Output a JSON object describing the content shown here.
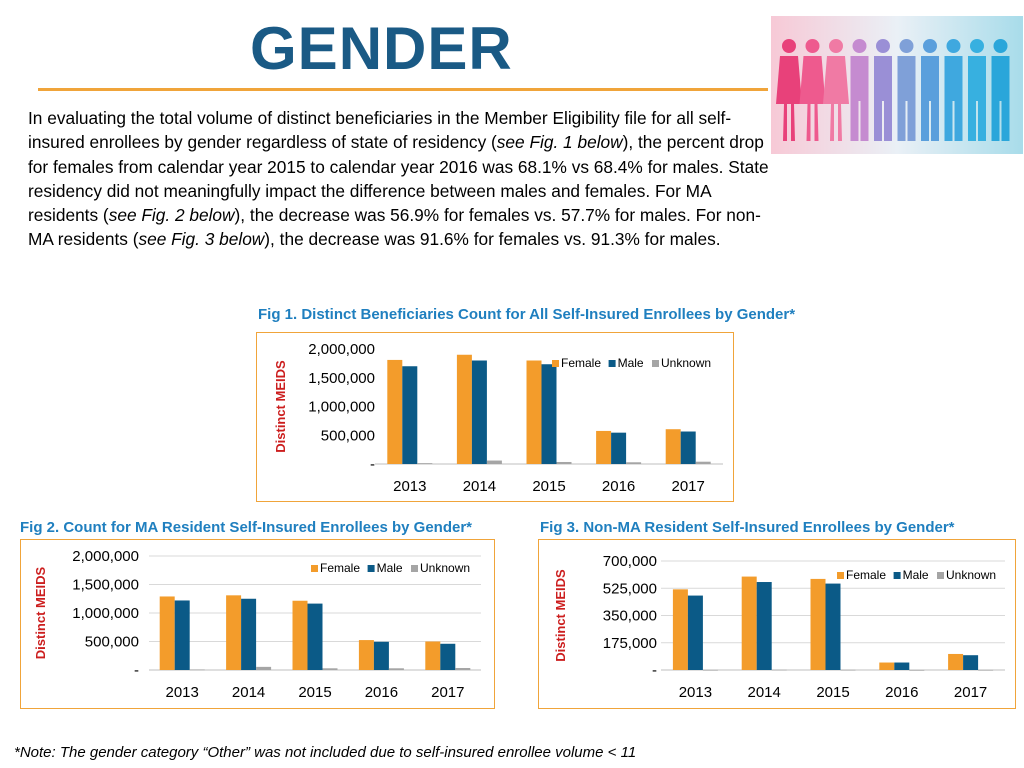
{
  "page": {
    "title": "GENDER",
    "paragraph": [
      {
        "t": "In evaluating the total volume of distinct beneficiaries in the Member Eligibility file for all self-insured enrollees by gender regardless of state of residency (",
        "i": false
      },
      {
        "t": "see Fig. 1 below",
        "i": true
      },
      {
        "t": "), the percent drop for females from calendar year 2015 to calendar year 2016 was 68.1% vs 68.4% for males.  State residency did not meaningfully impact the difference between males and females.  For MA residents (",
        "i": false
      },
      {
        "t": "see Fig. 2 below",
        "i": true
      },
      {
        "t": "),  the decrease was 56.9% for females vs. 57.7% for males.  For non-MA residents (",
        "i": false
      },
      {
        "t": "see Fig. 3 below",
        "i": true
      },
      {
        "t": "), the decrease was 91.6% for females vs. 91.3% for males.",
        "i": false
      }
    ],
    "note": "*Note: The gender category “Other” was not included due to self-insured enrollee volume < 11",
    "hero_icon": "people-silhouettes-image"
  },
  "chart_data": [
    {
      "type": "bar",
      "title": "Fig 1. Distinct Beneficiaries Count for All Self-Insured Enrollees by Gender*",
      "ylabel": "Distinct MEIDS",
      "xlabel": "",
      "categories": [
        "2013",
        "2014",
        "2015",
        "2016",
        "2017"
      ],
      "ylim": [
        0,
        2000000
      ],
      "yticks": [
        0,
        500000,
        1000000,
        1500000,
        2000000
      ],
      "ytick_labels": [
        "-",
        "500,000",
        "1,000,000",
        "1,500,000",
        "2,000,000"
      ],
      "series": [
        {
          "name": "Female",
          "color": "#f39c2b",
          "values": [
            1810000,
            1900000,
            1800000,
            575000,
            605000
          ]
        },
        {
          "name": "Male",
          "color": "#0b5a87",
          "values": [
            1700000,
            1800000,
            1735000,
            545000,
            565000
          ]
        },
        {
          "name": "Unknown",
          "color": "#a5a5a5",
          "values": [
            15000,
            60000,
            35000,
            30000,
            40000
          ]
        }
      ],
      "legend": "top-right",
      "grid": false
    },
    {
      "type": "bar",
      "title": "Fig 2. Count for MA Resident Self-Insured Enrollees by Gender*",
      "ylabel": "Distinct MEIDS",
      "xlabel": "",
      "categories": [
        "2013",
        "2014",
        "2015",
        "2016",
        "2017"
      ],
      "ylim": [
        0,
        2000000
      ],
      "yticks": [
        0,
        500000,
        1000000,
        1500000,
        2000000
      ],
      "ytick_labels": [
        "-",
        "500,000",
        "1,000,000",
        "1,500,000",
        "2,000,000"
      ],
      "series": [
        {
          "name": "Female",
          "color": "#f39c2b",
          "values": [
            1290000,
            1310000,
            1215000,
            525000,
            500000
          ]
        },
        {
          "name": "Male",
          "color": "#0b5a87",
          "values": [
            1220000,
            1250000,
            1165000,
            495000,
            460000
          ]
        },
        {
          "name": "Unknown",
          "color": "#a5a5a5",
          "values": [
            10000,
            55000,
            30000,
            30000,
            35000
          ]
        }
      ],
      "legend": "top-right",
      "grid": true
    },
    {
      "type": "bar",
      "title": "Fig 3. Non-MA Resident Self-Insured Enrollees by Gender*",
      "ylabel": "Distinct MEIDS",
      "xlabel": "",
      "categories": [
        "2013",
        "2014",
        "2015",
        "2016",
        "2017"
      ],
      "ylim": [
        0,
        700000
      ],
      "yticks": [
        0,
        175000,
        350000,
        525000,
        700000
      ],
      "ytick_labels": [
        "-",
        "175,000",
        "350,000",
        "525,000",
        "700,000"
      ],
      "series": [
        {
          "name": "Female",
          "color": "#f39c2b",
          "values": [
            518000,
            600000,
            585000,
            48000,
            103000
          ]
        },
        {
          "name": "Male",
          "color": "#0b5a87",
          "values": [
            478000,
            565000,
            555000,
            48000,
            95000
          ]
        },
        {
          "name": "Unknown",
          "color": "#a5a5a5",
          "values": [
            1000,
            2000,
            1500,
            500,
            1000
          ]
        }
      ],
      "legend": "top-right",
      "grid": true
    }
  ]
}
